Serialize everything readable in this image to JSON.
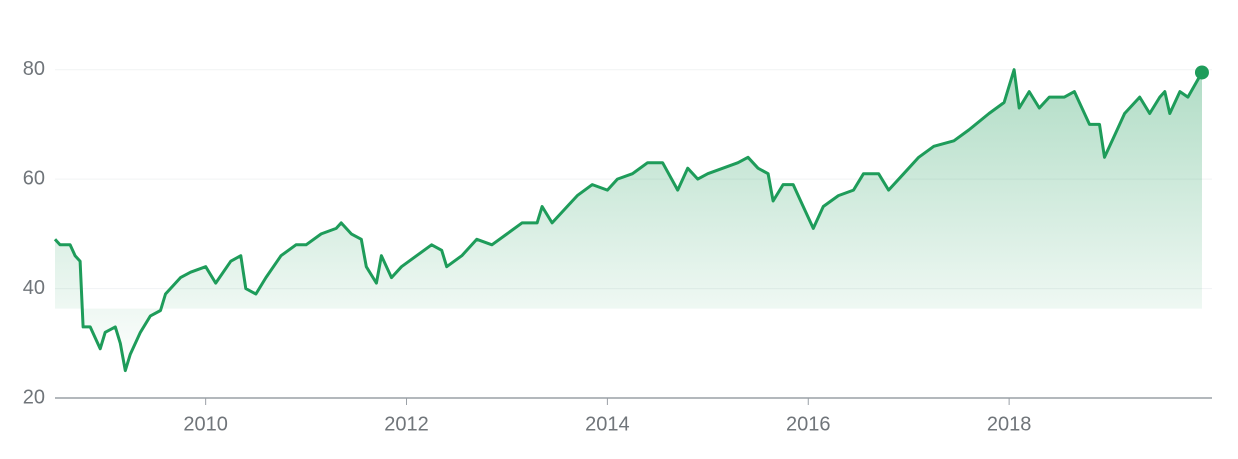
{
  "chart_data": {
    "type": "line",
    "x": [
      2008.5,
      2008.55,
      2008.65,
      2008.7,
      2008.75,
      2008.78,
      2008.85,
      2008.95,
      2009.0,
      2009.1,
      2009.15,
      2009.2,
      2009.25,
      2009.35,
      2009.45,
      2009.55,
      2009.6,
      2009.75,
      2009.85,
      2010.0,
      2010.1,
      2010.25,
      2010.35,
      2010.4,
      2010.5,
      2010.6,
      2010.75,
      2010.9,
      2011.0,
      2011.15,
      2011.3,
      2011.35,
      2011.45,
      2011.55,
      2011.6,
      2011.7,
      2011.75,
      2011.85,
      2011.95,
      2012.1,
      2012.25,
      2012.35,
      2012.4,
      2012.55,
      2012.7,
      2012.85,
      2013.0,
      2013.15,
      2013.3,
      2013.35,
      2013.45,
      2013.6,
      2013.7,
      2013.85,
      2014.0,
      2014.1,
      2014.25,
      2014.4,
      2014.55,
      2014.7,
      2014.8,
      2014.9,
      2015.0,
      2015.15,
      2015.3,
      2015.4,
      2015.5,
      2015.6,
      2015.65,
      2015.75,
      2015.85,
      2015.95,
      2016.05,
      2016.15,
      2016.3,
      2016.45,
      2016.55,
      2016.7,
      2016.8,
      2016.95,
      2017.1,
      2017.25,
      2017.45,
      2017.6,
      2017.8,
      2017.95,
      2018.05,
      2018.1,
      2018.2,
      2018.3,
      2018.4,
      2018.55,
      2018.65,
      2018.7,
      2018.8,
      2018.9,
      2018.95,
      2019.05,
      2019.15,
      2019.3,
      2019.4,
      2019.5,
      2019.55,
      2019.6,
      2019.7,
      2019.78,
      2019.92
    ],
    "series": [
      {
        "color": "#1e9c5a",
        "values": [
          49,
          48,
          48,
          46,
          45,
          33,
          33,
          29,
          32,
          33,
          30,
          25,
          28,
          32,
          35,
          36,
          39,
          42,
          43,
          44,
          41,
          45,
          46,
          40,
          39,
          42,
          46,
          48,
          48,
          50,
          51,
          52,
          50,
          49,
          44,
          41,
          46,
          42,
          44,
          46,
          48,
          47,
          44,
          46,
          49,
          48,
          50,
          52,
          52,
          55,
          52,
          55,
          57,
          59,
          58,
          60,
          61,
          63,
          63,
          58,
          62,
          60,
          61,
          62,
          63,
          64,
          62,
          61,
          56,
          59,
          59,
          55,
          51,
          55,
          57,
          58,
          61,
          61,
          58,
          61,
          64,
          66,
          67,
          69,
          72,
          74,
          80,
          73,
          76,
          73,
          75,
          75,
          76,
          74,
          70,
          70,
          64,
          68,
          72,
          75,
          72,
          75,
          76,
          72,
          76,
          75,
          79.5
        ]
      }
    ],
    "xlim": [
      2008.5,
      2020.02
    ],
    "xticks": [
      2010,
      2012,
      2014,
      2016,
      2018
    ],
    "ylim": [
      20,
      90
    ],
    "yticks": [
      20,
      40,
      60,
      80
    ],
    "grid": true
  }
}
